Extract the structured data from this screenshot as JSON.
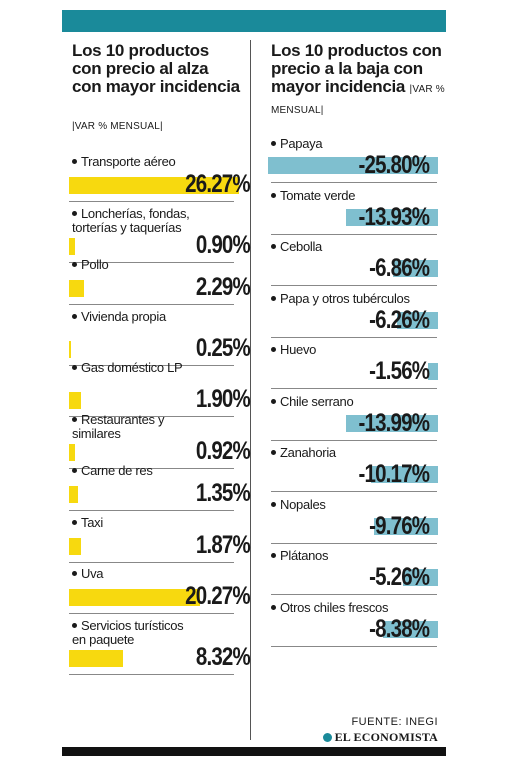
{
  "colors": {
    "accent_bar": "#1a8a9a",
    "rise": "#f7d90f",
    "fall": "#7fbfcf"
  },
  "left": {
    "title": "Los 10 productos con precio al alza con mayor incidencia",
    "unit": "|VAR % MENSUAL|"
  },
  "right": {
    "title": "Los 10 productos con precio a la baja con mayor incidencia",
    "unit": "|VAR % MENSUAL|"
  },
  "chart_data": [
    {
      "type": "bar",
      "title": "Los 10 productos con precio al alza con mayor incidencia",
      "ylabel": "|VAR % MENSUAL|",
      "categories": [
        "Transporte aéreo",
        "Loncherías, fondas, torterías y taquerías",
        "Pollo",
        "Vivienda propia",
        "Gas doméstico LP",
        "Restaurantes y similares",
        "Carne de res",
        "Taxi",
        "Uva",
        "Servicios turísticos en paquete"
      ],
      "values": [
        26.27,
        0.9,
        2.29,
        0.25,
        1.9,
        0.92,
        1.35,
        1.87,
        20.27,
        8.32
      ],
      "labels": [
        "26.27%",
        "0.90%",
        "2.29%",
        "0.25%",
        "1.90%",
        "0.92%",
        "1.35%",
        "1.87%",
        "20.27%",
        "8.32%"
      ],
      "color": "#f7d90f"
    },
    {
      "type": "bar",
      "title": "Los 10 productos con precio a la baja con mayor incidencia",
      "ylabel": "|VAR % MENSUAL|",
      "categories": [
        "Papaya",
        "Tomate verde",
        "Cebolla",
        "Papa y otros tubérculos",
        "Huevo",
        "Chile serrano",
        "Zanahoria",
        "Nopales",
        "Plátanos",
        "Otros chiles frescos"
      ],
      "values": [
        -25.8,
        -13.93,
        -6.86,
        -6.26,
        -1.56,
        -13.99,
        -10.17,
        -9.76,
        -5.26,
        -8.38
      ],
      "labels": [
        "-25.80%",
        "-13.93%",
        "-6.86%",
        "-6.26%",
        "-1.56%",
        "-13.99%",
        "-10.17%",
        "-9.76%",
        "-5.26%",
        "-8.38%"
      ],
      "color": "#7fbfcf"
    }
  ],
  "footer": {
    "source": "FUENTE: INEGI",
    "logo_text": "EL ECONOMISTA"
  }
}
